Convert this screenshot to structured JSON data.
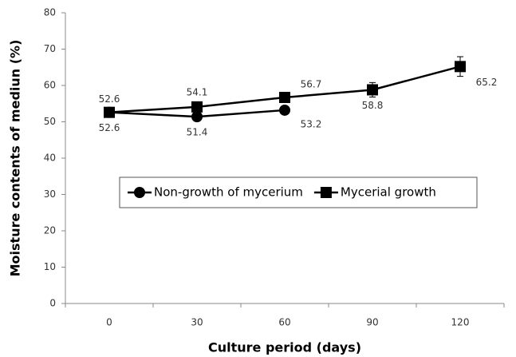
{
  "chart_data": {
    "type": "line",
    "xlabel": "Culture period (days)",
    "ylabel": "Moisture contents of mediun (%)",
    "categories": [
      0,
      30,
      60,
      90,
      120
    ],
    "series": [
      {
        "name": "Non-growth of mycerium",
        "color": "#000000",
        "marker": "circle",
        "values": [
          52.6,
          51.4,
          53.2,
          null,
          null
        ]
      },
      {
        "name": "Mycerial growth",
        "color": "#000000",
        "marker": "square",
        "values": [
          52.6,
          54.1,
          56.7,
          58.8,
          65.2
        ],
        "errors": [
          null,
          null,
          null,
          2,
          2.7
        ]
      }
    ],
    "ylim": [
      0,
      80
    ],
    "yticks": [
      0,
      10,
      20,
      30,
      40,
      50,
      60,
      70,
      80
    ]
  }
}
